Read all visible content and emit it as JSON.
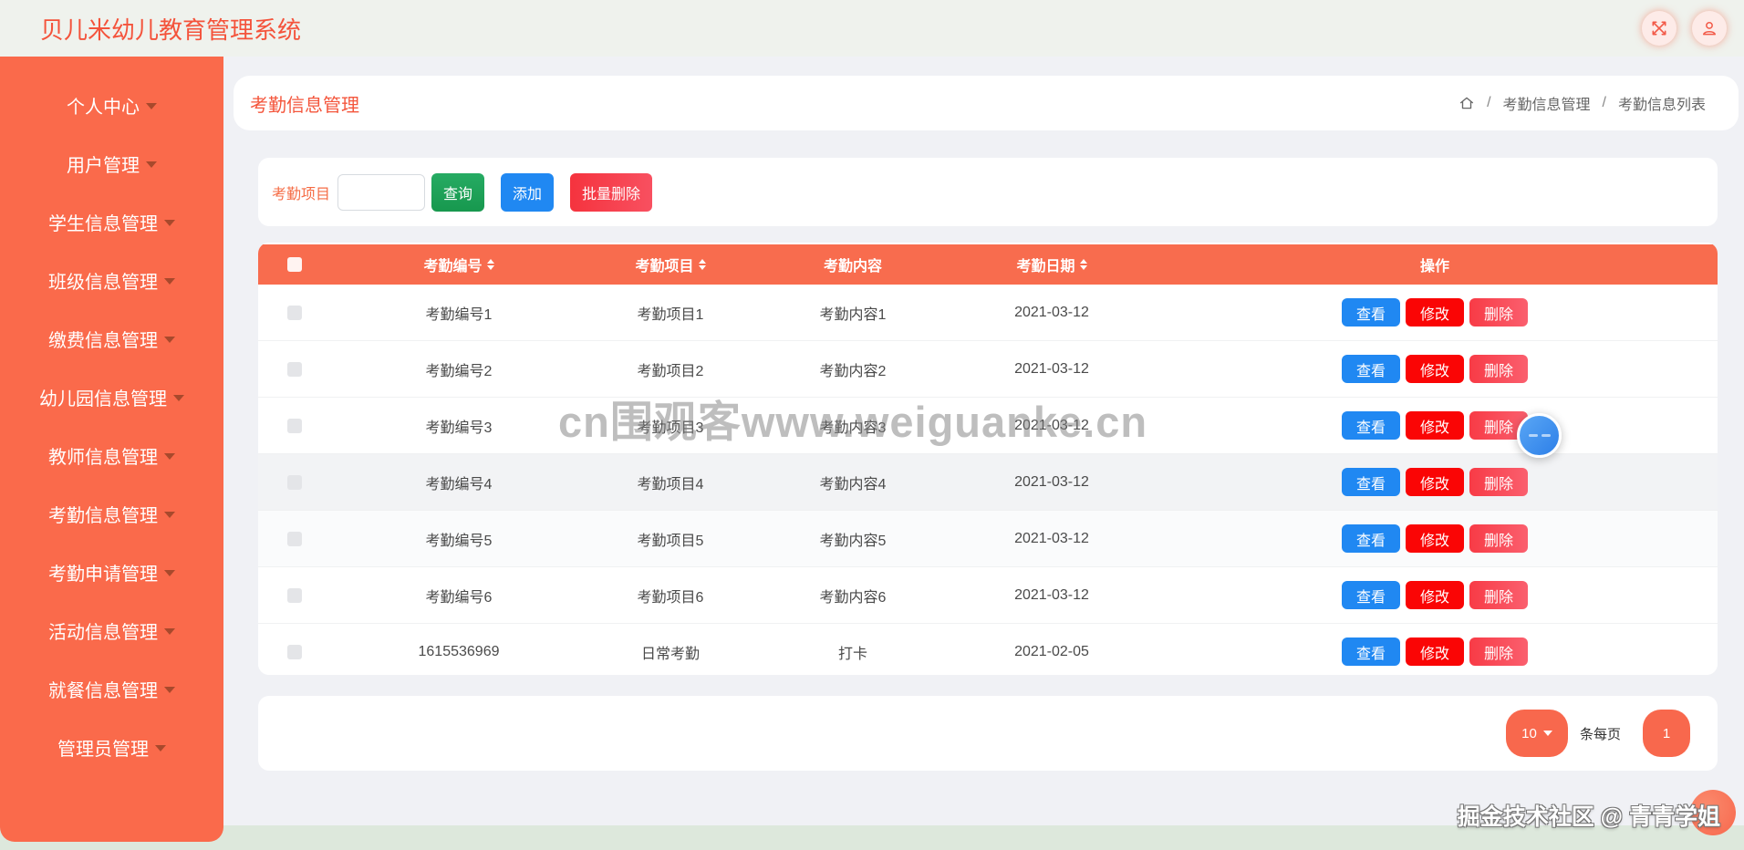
{
  "app": {
    "title": "贝儿米幼儿教育管理系统"
  },
  "topbar": {
    "icons": [
      "fullscreen-icon",
      "user-icon"
    ]
  },
  "sidebar": {
    "items": [
      "个人中心",
      "用户管理",
      "学生信息管理",
      "班级信息管理",
      "缴费信息管理",
      "幼儿园信息管理",
      "教师信息管理",
      "考勤信息管理",
      "考勤申请管理",
      "活动信息管理",
      "就餐信息管理",
      "管理员管理"
    ]
  },
  "page": {
    "title": "考勤信息管理",
    "breadcrumb": {
      "home_icon": "home-icon",
      "separator": "/",
      "items": [
        "考勤信息管理",
        "考勤信息列表"
      ]
    }
  },
  "search": {
    "label": "考勤项目",
    "input_value": "",
    "query_button": "查询",
    "add_button": "添加",
    "batch_delete_button": "批量删除"
  },
  "table": {
    "columns": [
      {
        "label": "",
        "sortable": false
      },
      {
        "label": "考勤编号",
        "sortable": true
      },
      {
        "label": "考勤项目",
        "sortable": true
      },
      {
        "label": "考勤内容",
        "sortable": false
      },
      {
        "label": "考勤日期",
        "sortable": true
      },
      {
        "label": "操作",
        "sortable": false
      }
    ],
    "rows": [
      {
        "cells": [
          "考勤编号1",
          "考勤项目1",
          "考勤内容1",
          "2021-03-12"
        ]
      },
      {
        "cells": [
          "考勤编号2",
          "考勤项目2",
          "考勤内容2",
          "2021-03-12"
        ]
      },
      {
        "cells": [
          "考勤编号3",
          "考勤项目3",
          "考勤内容3",
          "2021-03-12"
        ]
      },
      {
        "cells": [
          "考勤编号4",
          "考勤项目4",
          "考勤内容4",
          "2021-03-12"
        ]
      },
      {
        "cells": [
          "考勤编号5",
          "考勤项目5",
          "考勤内容5",
          "2021-03-12"
        ]
      },
      {
        "cells": [
          "考勤编号6",
          "考勤项目6",
          "考勤内容6",
          "2021-03-12"
        ]
      },
      {
        "cells": [
          "1615536969",
          "日常考勤",
          "打卡",
          "2021-02-05"
        ]
      }
    ],
    "row_actions": [
      "查看",
      "修改",
      "删除"
    ]
  },
  "pagination": {
    "page_size": "10",
    "per_page_label": "条每页",
    "current_page": "1"
  },
  "watermarks": {
    "center": "cn围观客www.weiguanke.cn",
    "footer": "掘金技术社区 @ 青青学姐"
  },
  "colors": {
    "sidebar_orange": "#fa6a4b",
    "table_header_orange": "#f86c4e",
    "title_red": "#f4533b",
    "green_button": "#1da258",
    "blue_button": "#2088f2",
    "edit_red_button": "#fa0505",
    "delete_pink_button": "#f83b46",
    "pagination_orange": "#f8684d",
    "topbar_bg": "#eff2ed",
    "bottom_strip_green": "#dde8dc",
    "content_bg": "#f0f1f5"
  }
}
